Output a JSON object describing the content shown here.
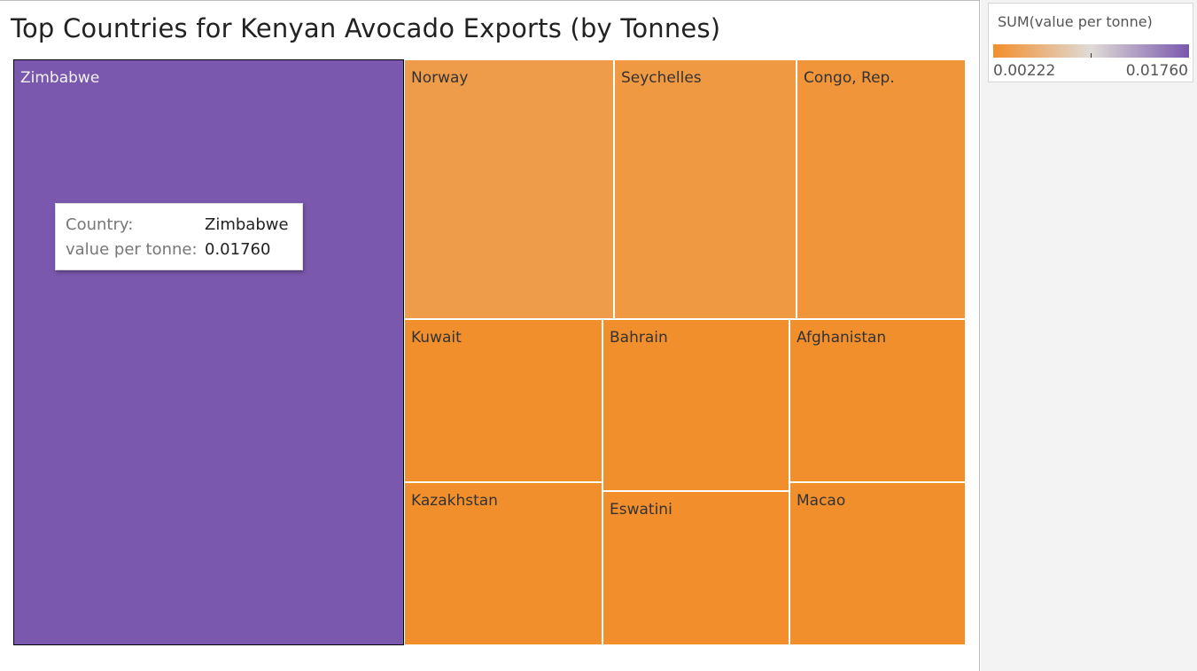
{
  "title": "Top Countries for Kenyan Avocado Exports (by Tonnes)",
  "tooltip": {
    "country_key": "Country:",
    "country_value": "Zimbabwe",
    "metric_key": "value per tonne:",
    "metric_value": "0.01760"
  },
  "legend": {
    "title": "SUM(value per tonne)",
    "min_label": "0.00222",
    "max_label": "0.01760",
    "colors": [
      "#f28e2b",
      "#dfdbd6",
      "#7a58ad"
    ]
  },
  "chart_data": {
    "type": "treemap",
    "measure": "SUM(value per tonne)",
    "color_range": [
      0.00222,
      0.0176
    ],
    "selected": "Zimbabwe",
    "countries": [
      {
        "name": "Zimbabwe",
        "value": 0.0176
      },
      {
        "name": "Norway",
        "value": 0.0036
      },
      {
        "name": "Seychelles",
        "value": 0.0033
      },
      {
        "name": "Congo, Rep.",
        "value": 0.0029
      },
      {
        "name": "Kuwait",
        "value": 0.0023
      },
      {
        "name": "Bahrain",
        "value": 0.0023
      },
      {
        "name": "Afghanistan",
        "value": 0.0023
      },
      {
        "name": "Kazakhstan",
        "value": 0.0023
      },
      {
        "name": "Eswatini",
        "value": 0.00222
      },
      {
        "name": "Macao",
        "value": 0.0023
      }
    ]
  }
}
